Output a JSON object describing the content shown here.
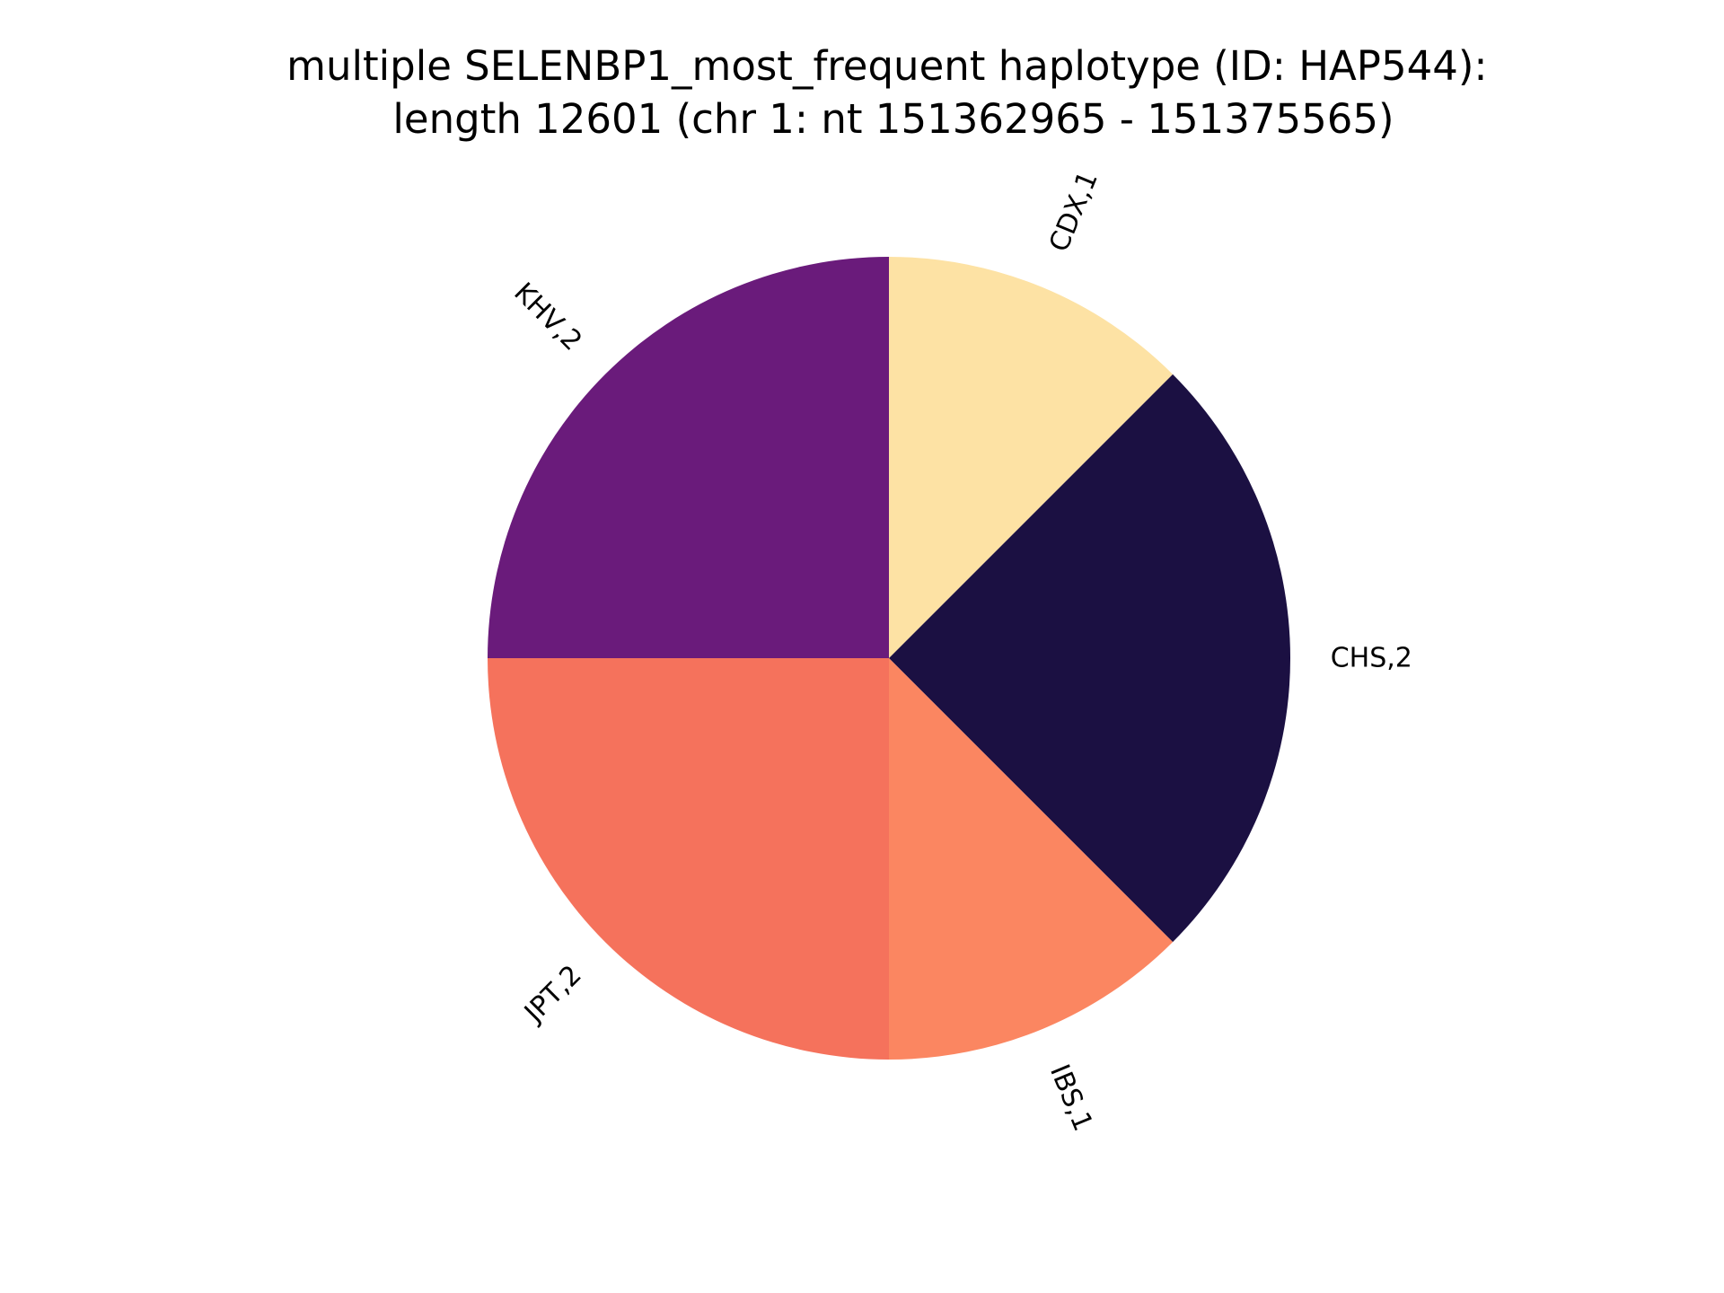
{
  "chart_data": {
    "type": "pie",
    "title": "multiple SELENBP1_most_frequent haplotype (ID: HAP544):\nlength 12601 (chr 1: nt 151362965 - 151375565)",
    "title_lines": [
      "multiple SELENBP1_most_frequent haplotype (ID: HAP544):",
      "length 12601 (chr 1: nt 151362965 - 151375565)"
    ],
    "start_angle_deg": 90,
    "direction": "clockwise",
    "slices": [
      {
        "category": "CDX",
        "value": 1,
        "label": "CDX,1",
        "color": "#fde2a4"
      },
      {
        "category": "CHS",
        "value": 2,
        "label": "CHS,2",
        "color": "#1b1042"
      },
      {
        "category": "IBS",
        "value": 1,
        "label": "IBS,1",
        "color": "#fb8661"
      },
      {
        "category": "JPT",
        "value": 2,
        "label": "JPT,2",
        "color": "#f5725c"
      },
      {
        "category": "KHV",
        "value": 2,
        "label": "KHV,2",
        "color": "#6a1b7b"
      }
    ],
    "categories": [
      "CDX",
      "CHS",
      "IBS",
      "JPT",
      "KHV"
    ],
    "values": [
      1,
      2,
      1,
      2,
      2
    ]
  }
}
